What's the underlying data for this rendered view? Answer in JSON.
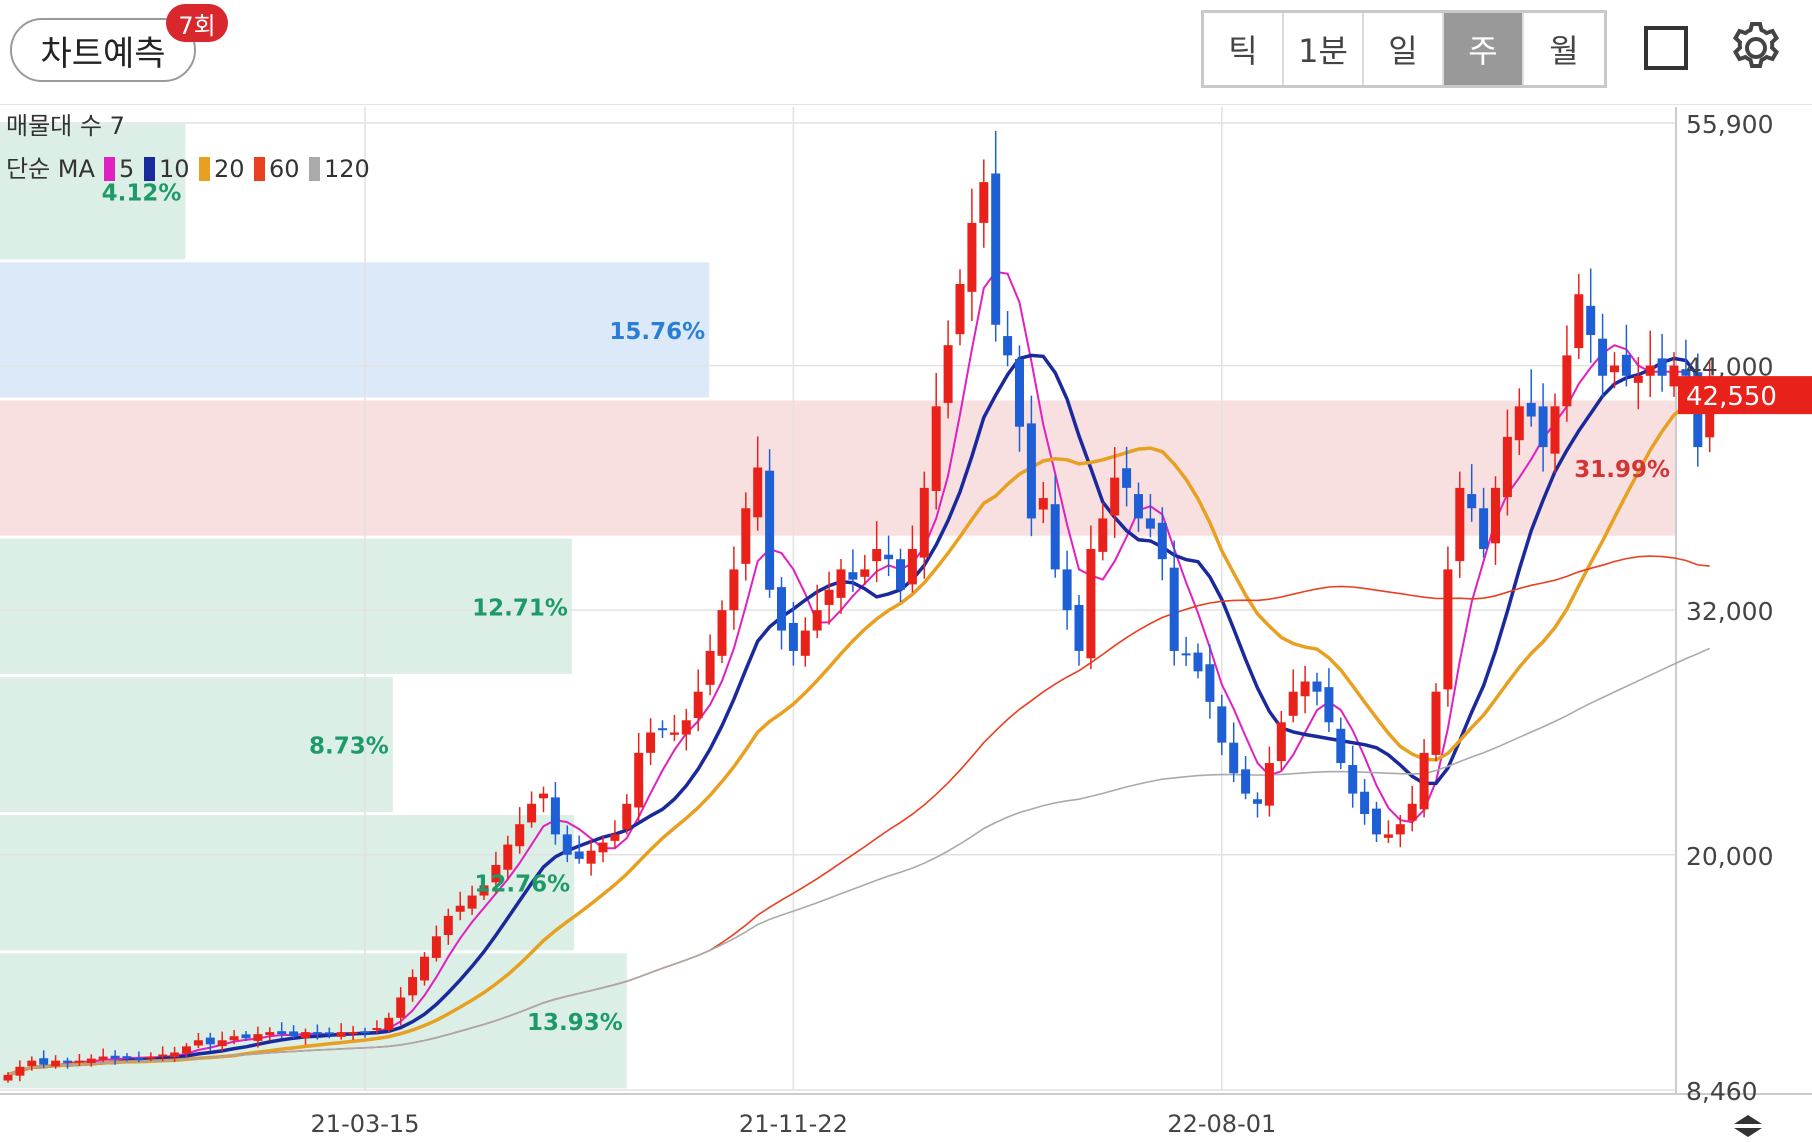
{
  "header": {
    "predict_label": "차트예측",
    "predict_badge": "7회",
    "period_tabs": [
      {
        "label": "틱",
        "active": false
      },
      {
        "label": "1분",
        "active": false
      },
      {
        "label": "일",
        "active": false
      },
      {
        "label": "주",
        "active": true
      },
      {
        "label": "월",
        "active": false
      }
    ],
    "icons": {
      "square": "square-icon",
      "settings": "gear-icon",
      "scroll": "scroll-arrows-icon"
    }
  },
  "chart_data": {
    "type": "candlestick",
    "title": "",
    "overlay_labels": {
      "volume_profile": "매물대 수 7",
      "ma_prefix": "단순 MA"
    },
    "ma_legend": [
      {
        "name": "5",
        "color": "#e020c0"
      },
      {
        "name": "10",
        "color": "#1a2a9c"
      },
      {
        "name": "20",
        "color": "#e8a020"
      },
      {
        "name": "60",
        "color": "#e84020"
      },
      {
        "name": "120",
        "color": "#aaaaaa"
      }
    ],
    "y_axis": {
      "ticks": [
        55900,
        44000,
        32000,
        20000,
        8460
      ],
      "tick_labels": [
        "55,900",
        "44,000",
        "32,000",
        "20,000",
        "8,460"
      ],
      "range": [
        8460,
        55900
      ]
    },
    "x_axis": {
      "tick_labels": [
        "21-03-15",
        "21-11-22",
        "22-08-01"
      ],
      "tick_index": [
        30,
        66,
        102
      ]
    },
    "current_price": {
      "value": 42550,
      "label": "42,550",
      "color": "#e8221a"
    },
    "volume_profile": [
      {
        "low": 8460,
        "high": 15240,
        "percent": "13.93%",
        "share": 13.93,
        "color": "#dcefe6",
        "text_color": "#1e9a68"
      },
      {
        "low": 15240,
        "high": 22020,
        "percent": "12.76%",
        "share": 12.76,
        "color": "#dcefe6",
        "text_color": "#1e9a68"
      },
      {
        "low": 22020,
        "high": 28800,
        "percent": "8.73%",
        "share": 8.73,
        "color": "#dcefe6",
        "text_color": "#1e9a68"
      },
      {
        "low": 28800,
        "high": 35580,
        "percent": "12.71%",
        "share": 12.71,
        "color": "#dcefe6",
        "text_color": "#1e9a68"
      },
      {
        "low": 35580,
        "high": 42360,
        "percent": "31.99%",
        "share": 31.99,
        "color": "#f8dfe0",
        "text_color": "#d33434"
      },
      {
        "low": 42360,
        "high": 49140,
        "percent": "15.76%",
        "share": 15.76,
        "color": "#dce9f8",
        "text_color": "#2a7fd4"
      },
      {
        "low": 49140,
        "high": 55920,
        "percent": "4.12%",
        "share": 4.12,
        "color": "#dcefe6",
        "text_color": "#1e9a68"
      }
    ],
    "series": [
      {
        "name": "price",
        "values": [
          9200,
          9600,
          9900,
          9700,
          9900,
          9800,
          9900,
          10000,
          10100,
          10000,
          10100,
          10000,
          10100,
          10200,
          10300,
          10600,
          10900,
          10700,
          10900,
          11100,
          11000,
          11200,
          11300,
          11200,
          11100,
          11300,
          11200,
          11200,
          11300,
          11300,
          11300,
          11500,
          12000,
          13000,
          14000,
          15000,
          16000,
          17000,
          17500,
          18000,
          18500,
          19500,
          20500,
          21500,
          22500,
          23000,
          21000,
          20000,
          19800,
          20200,
          20600,
          21000,
          22500,
          25000,
          26000,
          26200,
          26000,
          26600,
          28000,
          30000,
          32000,
          34000,
          37000,
          39000,
          33000,
          31000,
          30000,
          31000,
          32000,
          33000,
          34000,
          33500,
          34000,
          35000,
          34500,
          33000,
          35000,
          38000,
          42000,
          45000,
          48000,
          51000,
          53000,
          46000,
          44500,
          41000,
          36500,
          37500,
          34000,
          32000,
          30000,
          35000,
          36500,
          38500,
          38000,
          36500,
          36000,
          34500,
          30000,
          29800,
          29000,
          27500,
          25500,
          24000,
          23000,
          22500,
          24500,
          26500,
          28000,
          28500,
          28000,
          26500,
          24500,
          23000,
          22000,
          21000,
          21000,
          21500,
          22500,
          25000,
          28000,
          34000,
          38000,
          37000,
          35000,
          38000,
          40500,
          42000,
          41500,
          40000,
          42000,
          44500,
          47500,
          45500,
          43500,
          44000,
          43500,
          43500,
          44000,
          43500,
          44000,
          43500,
          40000,
          42550
        ]
      }
    ]
  }
}
